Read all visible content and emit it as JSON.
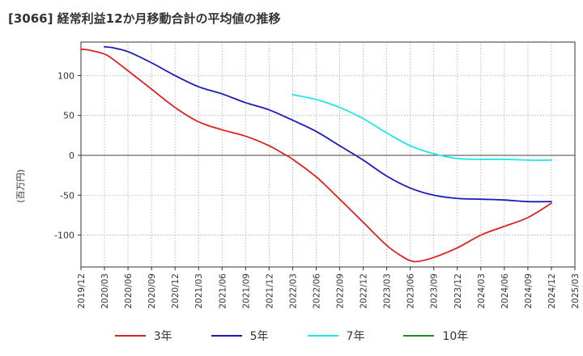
{
  "header": {
    "title": "[3066]  経常利益12か月移動合計の平均値の推移"
  },
  "chart_data": {
    "type": "line",
    "title": "[3066]  経常利益12か月移動合計の平均値の推移",
    "ylabel": "(百万円)",
    "xlabel": "",
    "ylim": [
      -140,
      142
    ],
    "yticks": [
      100,
      50,
      0,
      -50,
      -100
    ],
    "y_tick_labels": [
      "100",
      "50",
      "0",
      "-50",
      "-100"
    ],
    "x_tick_labels": [
      "2019/12",
      "2020/03",
      "2020/06",
      "2020/09",
      "2020/12",
      "2021/03",
      "2021/06",
      "2021/09",
      "2021/12",
      "2022/03",
      "2022/06",
      "2022/09",
      "2022/12",
      "2023/03",
      "2023/06",
      "2023/09",
      "2023/12",
      "2024/03",
      "2024/06",
      "2024/09",
      "2024/12",
      "2025/03"
    ],
    "grid": true,
    "legend_position": "bottom",
    "series": [
      {
        "name": "3年",
        "color": "#dd2222",
        "x": [
          "2019/12",
          "2020/01",
          "2020/03",
          "2020/04",
          "2020/06",
          "2020/09",
          "2020/12",
          "2021/03",
          "2021/06",
          "2021/09",
          "2021/12",
          "2022/02",
          "2022/03",
          "2022/06",
          "2022/09",
          "2022/12",
          "2023/03",
          "2023/05",
          "2023/06",
          "2023/07",
          "2023/09",
          "2023/12",
          "2024/03",
          "2024/06",
          "2024/09",
          "2024/12"
        ],
        "values": [
          133,
          132,
          127,
          121,
          106,
          83,
          60,
          42,
          32,
          24,
          12,
          1,
          -5,
          -27,
          -55,
          -84,
          -113,
          -127,
          -132,
          -133,
          -128,
          -116,
          -100,
          -89,
          -78,
          -60
        ]
      },
      {
        "name": "5年",
        "color": "#1a1ab8",
        "x": [
          "2020/03",
          "2020/04",
          "2020/06",
          "2020/09",
          "2020/12",
          "2021/03",
          "2021/06",
          "2021/09",
          "2021/12",
          "2022/03",
          "2022/06",
          "2022/09",
          "2022/12",
          "2023/03",
          "2023/06",
          "2023/09",
          "2023/12",
          "2024/03",
          "2024/06",
          "2024/09",
          "2024/12"
        ],
        "values": [
          136,
          135,
          130,
          116,
          100,
          86,
          77,
          66,
          57,
          44,
          30,
          12,
          -6,
          -26,
          -41,
          -50,
          -54,
          -55,
          -56,
          -58,
          -58
        ]
      },
      {
        "name": "7年",
        "color": "#22e6e6",
        "x": [
          "2022/03",
          "2022/06",
          "2022/09",
          "2022/12",
          "2023/03",
          "2023/06",
          "2023/09",
          "2023/12",
          "2024/03",
          "2024/06",
          "2024/09",
          "2024/12"
        ],
        "values": [
          76,
          70,
          60,
          46,
          28,
          12,
          2,
          -4,
          -5,
          -5,
          -6,
          -6
        ]
      },
      {
        "name": "10年",
        "color": "#228b22",
        "x": [],
        "values": []
      }
    ]
  }
}
